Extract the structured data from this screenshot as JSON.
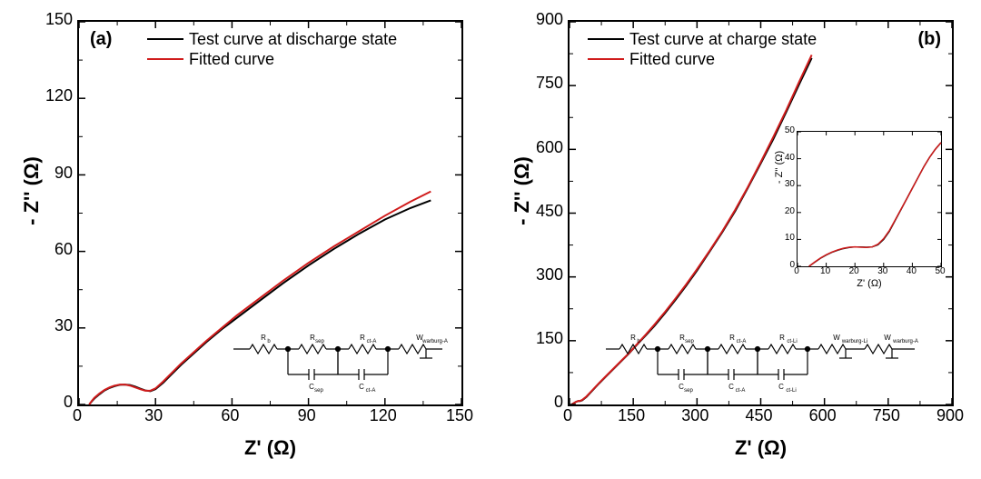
{
  "global": {
    "background_color": "#ffffff",
    "axis_color": "#000000",
    "axis_line_width": 2,
    "tick_font_size": 18,
    "axis_label_font_size": 22,
    "panel_tag_font_size": 20,
    "legend_font_size": 18,
    "xlabel": "Z' (Ω)",
    "ylabel": "- Z'' (Ω)"
  },
  "panel_a": {
    "tag": "(a)",
    "type": "line",
    "xlim": [
      0,
      150
    ],
    "ylim": [
      0,
      150
    ],
    "xticks": [
      0,
      30,
      60,
      90,
      120,
      150
    ],
    "yticks": [
      0,
      30,
      60,
      90,
      120,
      150
    ],
    "legend": {
      "position": "top-center",
      "items": [
        {
          "label": "Test curve at discharge state",
          "color": "#000000"
        },
        {
          "label": "Fitted curve",
          "color": "#d01c1c"
        }
      ]
    },
    "series": [
      {
        "name": "test_discharge",
        "color": "#000000",
        "line_width": 2.0,
        "points": [
          [
            4,
            0
          ],
          [
            5,
            1.2
          ],
          [
            6,
            2.3
          ],
          [
            8,
            4.0
          ],
          [
            10,
            5.5
          ],
          [
            12,
            6.5
          ],
          [
            14,
            7.2
          ],
          [
            16,
            7.7
          ],
          [
            18,
            7.8
          ],
          [
            20,
            7.6
          ],
          [
            22,
            7.0
          ],
          [
            24,
            6.2
          ],
          [
            26,
            5.5
          ],
          [
            28,
            5.2
          ],
          [
            30,
            6.0
          ],
          [
            33,
            8.5
          ],
          [
            36,
            11.5
          ],
          [
            40,
            15.5
          ],
          [
            45,
            20.0
          ],
          [
            50,
            24.5
          ],
          [
            56,
            29.5
          ],
          [
            62,
            34.0
          ],
          [
            70,
            40.0
          ],
          [
            80,
            47.5
          ],
          [
            90,
            54.5
          ],
          [
            100,
            61.0
          ],
          [
            110,
            67.0
          ],
          [
            120,
            72.5
          ],
          [
            130,
            77.0
          ],
          [
            138,
            80.0
          ]
        ]
      },
      {
        "name": "fitted_a",
        "color": "#d01c1c",
        "line_width": 2.0,
        "points": [
          [
            4,
            0
          ],
          [
            5,
            1.4
          ],
          [
            6,
            2.6
          ],
          [
            8,
            4.3
          ],
          [
            10,
            5.7
          ],
          [
            12,
            6.7
          ],
          [
            14,
            7.4
          ],
          [
            16,
            7.8
          ],
          [
            18,
            7.8
          ],
          [
            20,
            7.4
          ],
          [
            22,
            6.7
          ],
          [
            24,
            6.0
          ],
          [
            26,
            5.4
          ],
          [
            28,
            5.4
          ],
          [
            30,
            6.3
          ],
          [
            33,
            9.0
          ],
          [
            36,
            12.0
          ],
          [
            40,
            16.0
          ],
          [
            45,
            20.5
          ],
          [
            50,
            25.0
          ],
          [
            56,
            30.0
          ],
          [
            62,
            35.0
          ],
          [
            70,
            41.0
          ],
          [
            80,
            48.5
          ],
          [
            90,
            55.5
          ],
          [
            100,
            62.0
          ],
          [
            110,
            68.0
          ],
          [
            120,
            74.0
          ],
          [
            130,
            79.5
          ],
          [
            138,
            83.5
          ]
        ]
      }
    ],
    "circuit": {
      "elements": [
        "R_b",
        "R_sep",
        "C_sep",
        "R_ct-A",
        "C_ct-A",
        "W_warburg-A"
      ]
    }
  },
  "panel_b": {
    "tag": "(b)",
    "type": "line",
    "xlim": [
      0,
      900
    ],
    "ylim": [
      0,
      900
    ],
    "xticks": [
      0,
      150,
      300,
      450,
      600,
      750,
      900
    ],
    "yticks": [
      0,
      150,
      300,
      450,
      600,
      750,
      900
    ],
    "legend": {
      "position": "top-left",
      "items": [
        {
          "label": "Test curve at charge state",
          "color": "#000000"
        },
        {
          "label": "Fitted curve",
          "color": "#d01c1c"
        }
      ]
    },
    "series": [
      {
        "name": "test_charge",
        "color": "#000000",
        "line_width": 2.0,
        "points": [
          [
            5,
            0
          ],
          [
            10,
            3
          ],
          [
            15,
            6
          ],
          [
            20,
            8
          ],
          [
            25,
            8
          ],
          [
            30,
            10
          ],
          [
            40,
            18
          ],
          [
            55,
            34
          ],
          [
            70,
            50
          ],
          [
            85,
            65
          ],
          [
            100,
            80
          ],
          [
            120,
            100
          ],
          [
            140,
            120
          ],
          [
            160,
            142
          ],
          [
            180,
            163
          ],
          [
            200,
            185
          ],
          [
            225,
            215
          ],
          [
            250,
            247
          ],
          [
            275,
            280
          ],
          [
            300,
            315
          ],
          [
            330,
            360
          ],
          [
            360,
            406
          ],
          [
            390,
            455
          ],
          [
            420,
            510
          ],
          [
            450,
            567
          ],
          [
            480,
            625
          ],
          [
            510,
            688
          ],
          [
            540,
            752
          ],
          [
            570,
            815
          ]
        ]
      },
      {
        "name": "fitted_b",
        "color": "#d01c1c",
        "line_width": 2.0,
        "points": [
          [
            5,
            0
          ],
          [
            10,
            3
          ],
          [
            15,
            6
          ],
          [
            20,
            8
          ],
          [
            25,
            8.5
          ],
          [
            30,
            11
          ],
          [
            40,
            19
          ],
          [
            55,
            35
          ],
          [
            70,
            51
          ],
          [
            85,
            66
          ],
          [
            100,
            81
          ],
          [
            120,
            101
          ],
          [
            140,
            121
          ],
          [
            160,
            143
          ],
          [
            180,
            165
          ],
          [
            200,
            188
          ],
          [
            225,
            218
          ],
          [
            250,
            250
          ],
          [
            275,
            283
          ],
          [
            300,
            318
          ],
          [
            330,
            362
          ],
          [
            360,
            408
          ],
          [
            390,
            458
          ],
          [
            420,
            512
          ],
          [
            450,
            570
          ],
          [
            480,
            630
          ],
          [
            510,
            692
          ],
          [
            540,
            758
          ],
          [
            570,
            822
          ]
        ]
      }
    ],
    "inset": {
      "xlim": [
        0,
        50
      ],
      "ylim": [
        0,
        50
      ],
      "xticks": [
        0,
        10,
        20,
        30,
        40,
        50
      ],
      "yticks": [
        0,
        10,
        20,
        30,
        40,
        50
      ],
      "xlabel": "Z' (Ω)",
      "ylabel": "- Z'' (Ω)",
      "series": [
        {
          "name": "test_charge_inset",
          "color": "#000000",
          "line_width": 1.5,
          "points": [
            [
              4,
              0
            ],
            [
              6,
              1.5
            ],
            [
              8,
              3
            ],
            [
              10,
              4.2
            ],
            [
              12,
              5.2
            ],
            [
              14,
              6
            ],
            [
              16,
              6.6
            ],
            [
              18,
              7
            ],
            [
              20,
              7.2
            ],
            [
              22,
              7.2
            ],
            [
              24,
              7.1
            ],
            [
              26,
              7.2
            ],
            [
              28,
              8
            ],
            [
              30,
              10
            ],
            [
              32,
              13
            ],
            [
              34,
              17
            ],
            [
              36,
              21
            ],
            [
              38,
              25
            ],
            [
              40,
              29
            ],
            [
              42,
              33
            ],
            [
              44,
              37
            ],
            [
              46,
              40.5
            ],
            [
              48,
              43.5
            ],
            [
              50,
              46
            ]
          ]
        },
        {
          "name": "fitted_inset",
          "color": "#d01c1c",
          "line_width": 1.5,
          "points": [
            [
              4,
              0
            ],
            [
              6,
              1.6
            ],
            [
              8,
              3.1
            ],
            [
              10,
              4.3
            ],
            [
              12,
              5.3
            ],
            [
              14,
              6.1
            ],
            [
              16,
              6.7
            ],
            [
              18,
              7.1
            ],
            [
              20,
              7.2
            ],
            [
              22,
              7.1
            ],
            [
              24,
              7.0
            ],
            [
              26,
              7.2
            ],
            [
              28,
              8.2
            ],
            [
              30,
              10.3
            ],
            [
              32,
              13.3
            ],
            [
              34,
              17.2
            ],
            [
              36,
              21.1
            ],
            [
              38,
              25
            ],
            [
              40,
              29
            ],
            [
              42,
              33
            ],
            [
              44,
              37
            ],
            [
              46,
              40.5
            ],
            [
              48,
              43.5
            ],
            [
              50,
              46
            ]
          ]
        }
      ]
    },
    "circuit": {
      "elements": [
        "R_b",
        "R_sep",
        "C_sep",
        "R_ct-A",
        "C_ct-A",
        "R_ct-Li",
        "C_ct-Li",
        "W_warburg-Li",
        "W_warburg-A"
      ]
    }
  }
}
